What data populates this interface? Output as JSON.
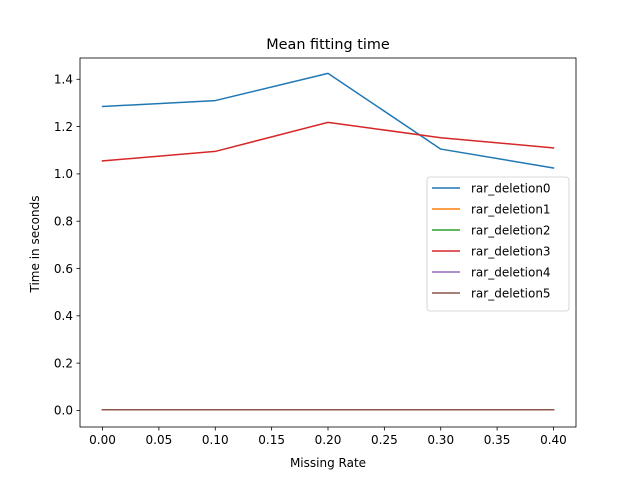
{
  "chart_data": {
    "type": "line",
    "title": "Mean fitting time",
    "xlabel": "Missing Rate",
    "ylabel": "Time in seconds",
    "x": [
      0.0,
      0.1,
      0.2,
      0.3,
      0.4
    ],
    "xlim": [
      -0.02,
      0.42
    ],
    "ylim": [
      -0.07,
      1.49
    ],
    "xticks": [
      0.0,
      0.05,
      0.1,
      0.15,
      0.2,
      0.25,
      0.3,
      0.35,
      0.4
    ],
    "xtick_labels": [
      "0.00",
      "0.05",
      "0.10",
      "0.15",
      "0.20",
      "0.25",
      "0.30",
      "0.35",
      "0.40"
    ],
    "yticks": [
      0.0,
      0.2,
      0.4,
      0.6,
      0.8,
      1.0,
      1.2,
      1.4
    ],
    "ytick_labels": [
      "0.0",
      "0.2",
      "0.4",
      "0.6",
      "0.8",
      "1.0",
      "1.2",
      "1.4"
    ],
    "grid": false,
    "legend_position": "center-right",
    "series": [
      {
        "name": "rar_deletion0",
        "color": "#1f77b4",
        "values": [
          1.285,
          1.31,
          1.425,
          1.105,
          1.025
        ]
      },
      {
        "name": "rar_deletion1",
        "color": "#ff7f0e",
        "values": [
          0.003,
          0.003,
          0.003,
          0.003,
          0.003
        ]
      },
      {
        "name": "rar_deletion2",
        "color": "#2ca02c",
        "values": [
          0.003,
          0.003,
          0.003,
          0.003,
          0.003
        ]
      },
      {
        "name": "rar_deletion3",
        "color": "#d62728",
        "values": [
          1.055,
          1.095,
          1.218,
          1.153,
          1.11
        ]
      },
      {
        "name": "rar_deletion4",
        "color": "#9467bd",
        "values": [
          0.003,
          0.003,
          0.003,
          0.003,
          0.003
        ]
      },
      {
        "name": "rar_deletion5",
        "color": "#8c564b",
        "values": [
          0.003,
          0.003,
          0.003,
          0.003,
          0.003
        ]
      }
    ]
  }
}
